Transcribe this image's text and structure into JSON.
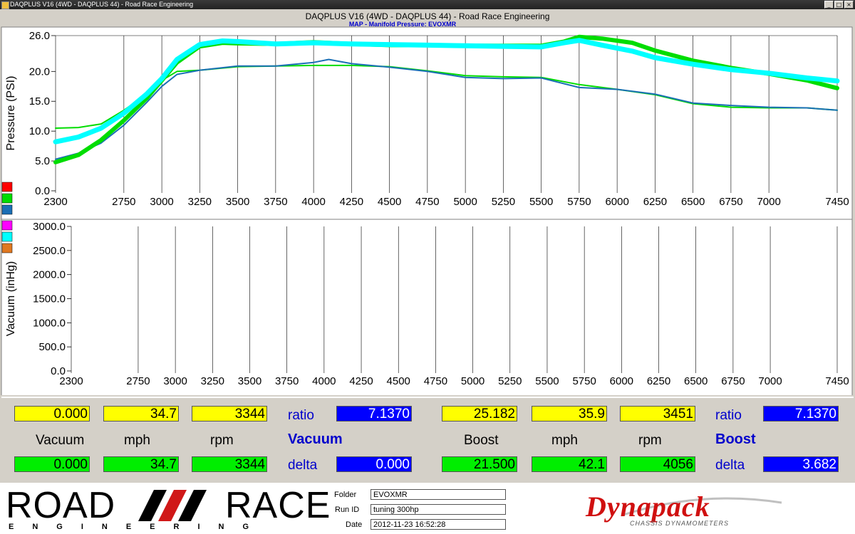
{
  "window": {
    "title": "DAQPLUS V16 (4WD - DAQPLUS 44) - Road Race Engineering",
    "minimize_glyph": "_",
    "maximize_glyph": "□",
    "close_glyph": "×"
  },
  "chart_title": "DAQPLUS V16 (4WD - DAQPLUS 44) - Road Race Engineering",
  "chart_subtitle": "MAP - Manifold Pressure: EVOXMR",
  "legend_swatches_top": [
    "#ff0000",
    "#00dd00",
    "#1a6fb5"
  ],
  "legend_swatches_bottom": [
    "#ff00ff",
    "#00ffff",
    "#e07820"
  ],
  "chart_data": [
    {
      "type": "line",
      "ylabel": "Pressure (PSI)",
      "xlim": [
        2300,
        7450
      ],
      "ylim": [
        0,
        26
      ],
      "x_ticks": [
        2300,
        2750,
        3000,
        3250,
        3500,
        3750,
        4000,
        4250,
        4500,
        4750,
        5000,
        5250,
        5500,
        5750,
        6000,
        6250,
        6500,
        6750,
        7000,
        7450
      ],
      "y_tick_labels": [
        "0.0",
        "5.0",
        "10.0",
        "15.0",
        "20.0",
        "26.0"
      ],
      "y_ticks": [
        0,
        5,
        10,
        15,
        20,
        26
      ],
      "grid": true,
      "series": [
        {
          "color": "#00dd00",
          "width": 2,
          "x": [
            2300,
            2450,
            2600,
            2750,
            2900,
            3000,
            3100,
            3250,
            3500,
            3750,
            4000,
            4250,
            4500,
            4750,
            5000,
            5250,
            5500,
            5750,
            6000,
            6250,
            6500,
            6750,
            7000,
            7250,
            7450
          ],
          "y": [
            10.5,
            10.6,
            11.2,
            13.5,
            16.2,
            18.5,
            20.0,
            20.2,
            20.8,
            20.9,
            21.0,
            21.0,
            20.8,
            20.1,
            19.3,
            19.1,
            19.0,
            17.8,
            17.0,
            16.1,
            14.6,
            14.0,
            13.9,
            13.9,
            13.5
          ]
        },
        {
          "color": "#1a6fb5",
          "width": 2,
          "x": [
            2300,
            2450,
            2600,
            2750,
            2900,
            3000,
            3100,
            3250,
            3500,
            3750,
            4000,
            4100,
            4250,
            4500,
            4750,
            5000,
            5250,
            5500,
            5750,
            6000,
            6250,
            6500,
            6750,
            7000,
            7250,
            7450
          ],
          "y": [
            5.3,
            6.3,
            8.0,
            11.0,
            14.8,
            17.5,
            19.5,
            20.2,
            20.9,
            20.9,
            21.5,
            22.0,
            21.3,
            20.7,
            20.0,
            19.0,
            18.8,
            18.9,
            17.3,
            17.0,
            16.2,
            14.7,
            14.3,
            14.0,
            13.9,
            13.5
          ]
        },
        {
          "color": "#00dd00",
          "width": 6,
          "x": [
            2300,
            2450,
            2600,
            2750,
            2900,
            3000,
            3100,
            3250,
            3400,
            3500,
            3750,
            4000,
            4250,
            4500,
            4750,
            5000,
            5250,
            5500,
            5650,
            5750,
            5900,
            6100,
            6250,
            6500,
            6750,
            7000,
            7250,
            7450
          ],
          "y": [
            4.8,
            6.0,
            8.5,
            11.8,
            15.5,
            18.5,
            21.5,
            24.2,
            24.8,
            24.7,
            24.6,
            24.9,
            24.6,
            24.4,
            24.4,
            24.3,
            24.3,
            24.3,
            25.0,
            25.8,
            25.5,
            24.8,
            23.5,
            21.8,
            20.6,
            19.6,
            18.5,
            17.2
          ]
        },
        {
          "color": "#00ffff",
          "width": 7,
          "x": [
            2300,
            2450,
            2600,
            2750,
            2900,
            3000,
            3100,
            3250,
            3400,
            3500,
            3750,
            4000,
            4250,
            4500,
            4750,
            5000,
            5250,
            5500,
            5650,
            5750,
            5900,
            6100,
            6250,
            6500,
            6750,
            7000,
            7250,
            7450
          ],
          "y": [
            8.2,
            9.0,
            10.5,
            13.0,
            16.2,
            18.8,
            22.0,
            24.5,
            25.1,
            25.0,
            24.6,
            24.8,
            24.6,
            24.5,
            24.4,
            24.3,
            24.2,
            24.1,
            24.8,
            25.2,
            24.4,
            23.4,
            22.3,
            21.2,
            20.3,
            19.7,
            18.9,
            18.4
          ]
        }
      ]
    },
    {
      "type": "line",
      "ylabel": "Vacuum (inHg)",
      "xlim": [
        2300,
        7450
      ],
      "ylim": [
        0,
        3000
      ],
      "x_ticks": [
        2300,
        2750,
        3000,
        3250,
        3500,
        3750,
        4000,
        4250,
        4500,
        4750,
        5000,
        5250,
        5500,
        5750,
        6000,
        6250,
        6500,
        6750,
        7000,
        7450
      ],
      "y_tick_labels": [
        "0.0",
        "500.0",
        "1000.0",
        "1500.0",
        "2000.0",
        "2500.0",
        "3000.0"
      ],
      "y_ticks": [
        0,
        500,
        1000,
        1500,
        2000,
        2500,
        3000
      ],
      "grid": true,
      "series": []
    }
  ],
  "readouts": {
    "vacuum": {
      "top": {
        "vacuum": "0.000",
        "mph": "34.7",
        "rpm": "3344",
        "ratio_label": "ratio",
        "ratio": "7.1370"
      },
      "labels": {
        "col1": "Vacuum",
        "col2": "mph",
        "col3": "rpm",
        "header": "Vacuum"
      },
      "bottom": {
        "vacuum": "0.000",
        "mph": "34.7",
        "rpm": "3344",
        "delta_label": "delta",
        "delta": "0.000"
      }
    },
    "boost": {
      "top": {
        "boost": "25.182",
        "mph": "35.9",
        "rpm": "3451",
        "ratio_label": "ratio",
        "ratio": "7.1370"
      },
      "labels": {
        "col1": "Boost",
        "col2": "mph",
        "col3": "rpm",
        "header": "Boost"
      },
      "bottom": {
        "boost": "21.500",
        "mph": "42.1",
        "rpm": "4056",
        "delta_label": "delta",
        "delta": "3.682"
      }
    }
  },
  "footer": {
    "logo_word1": "ROAD",
    "logo_word2": "RACE",
    "logo_sub": "ENGINEERING",
    "folder_label": "Folder",
    "folder_value": "EVOXMR",
    "runid_label": "Run ID",
    "runid_value": "tuning 300hp",
    "date_label": "Date",
    "date_value": "2012-11-23 16:52:28",
    "dyno_brand": "Dynapack",
    "dyno_sub": "CHASSIS DYNAMOMETERS"
  }
}
